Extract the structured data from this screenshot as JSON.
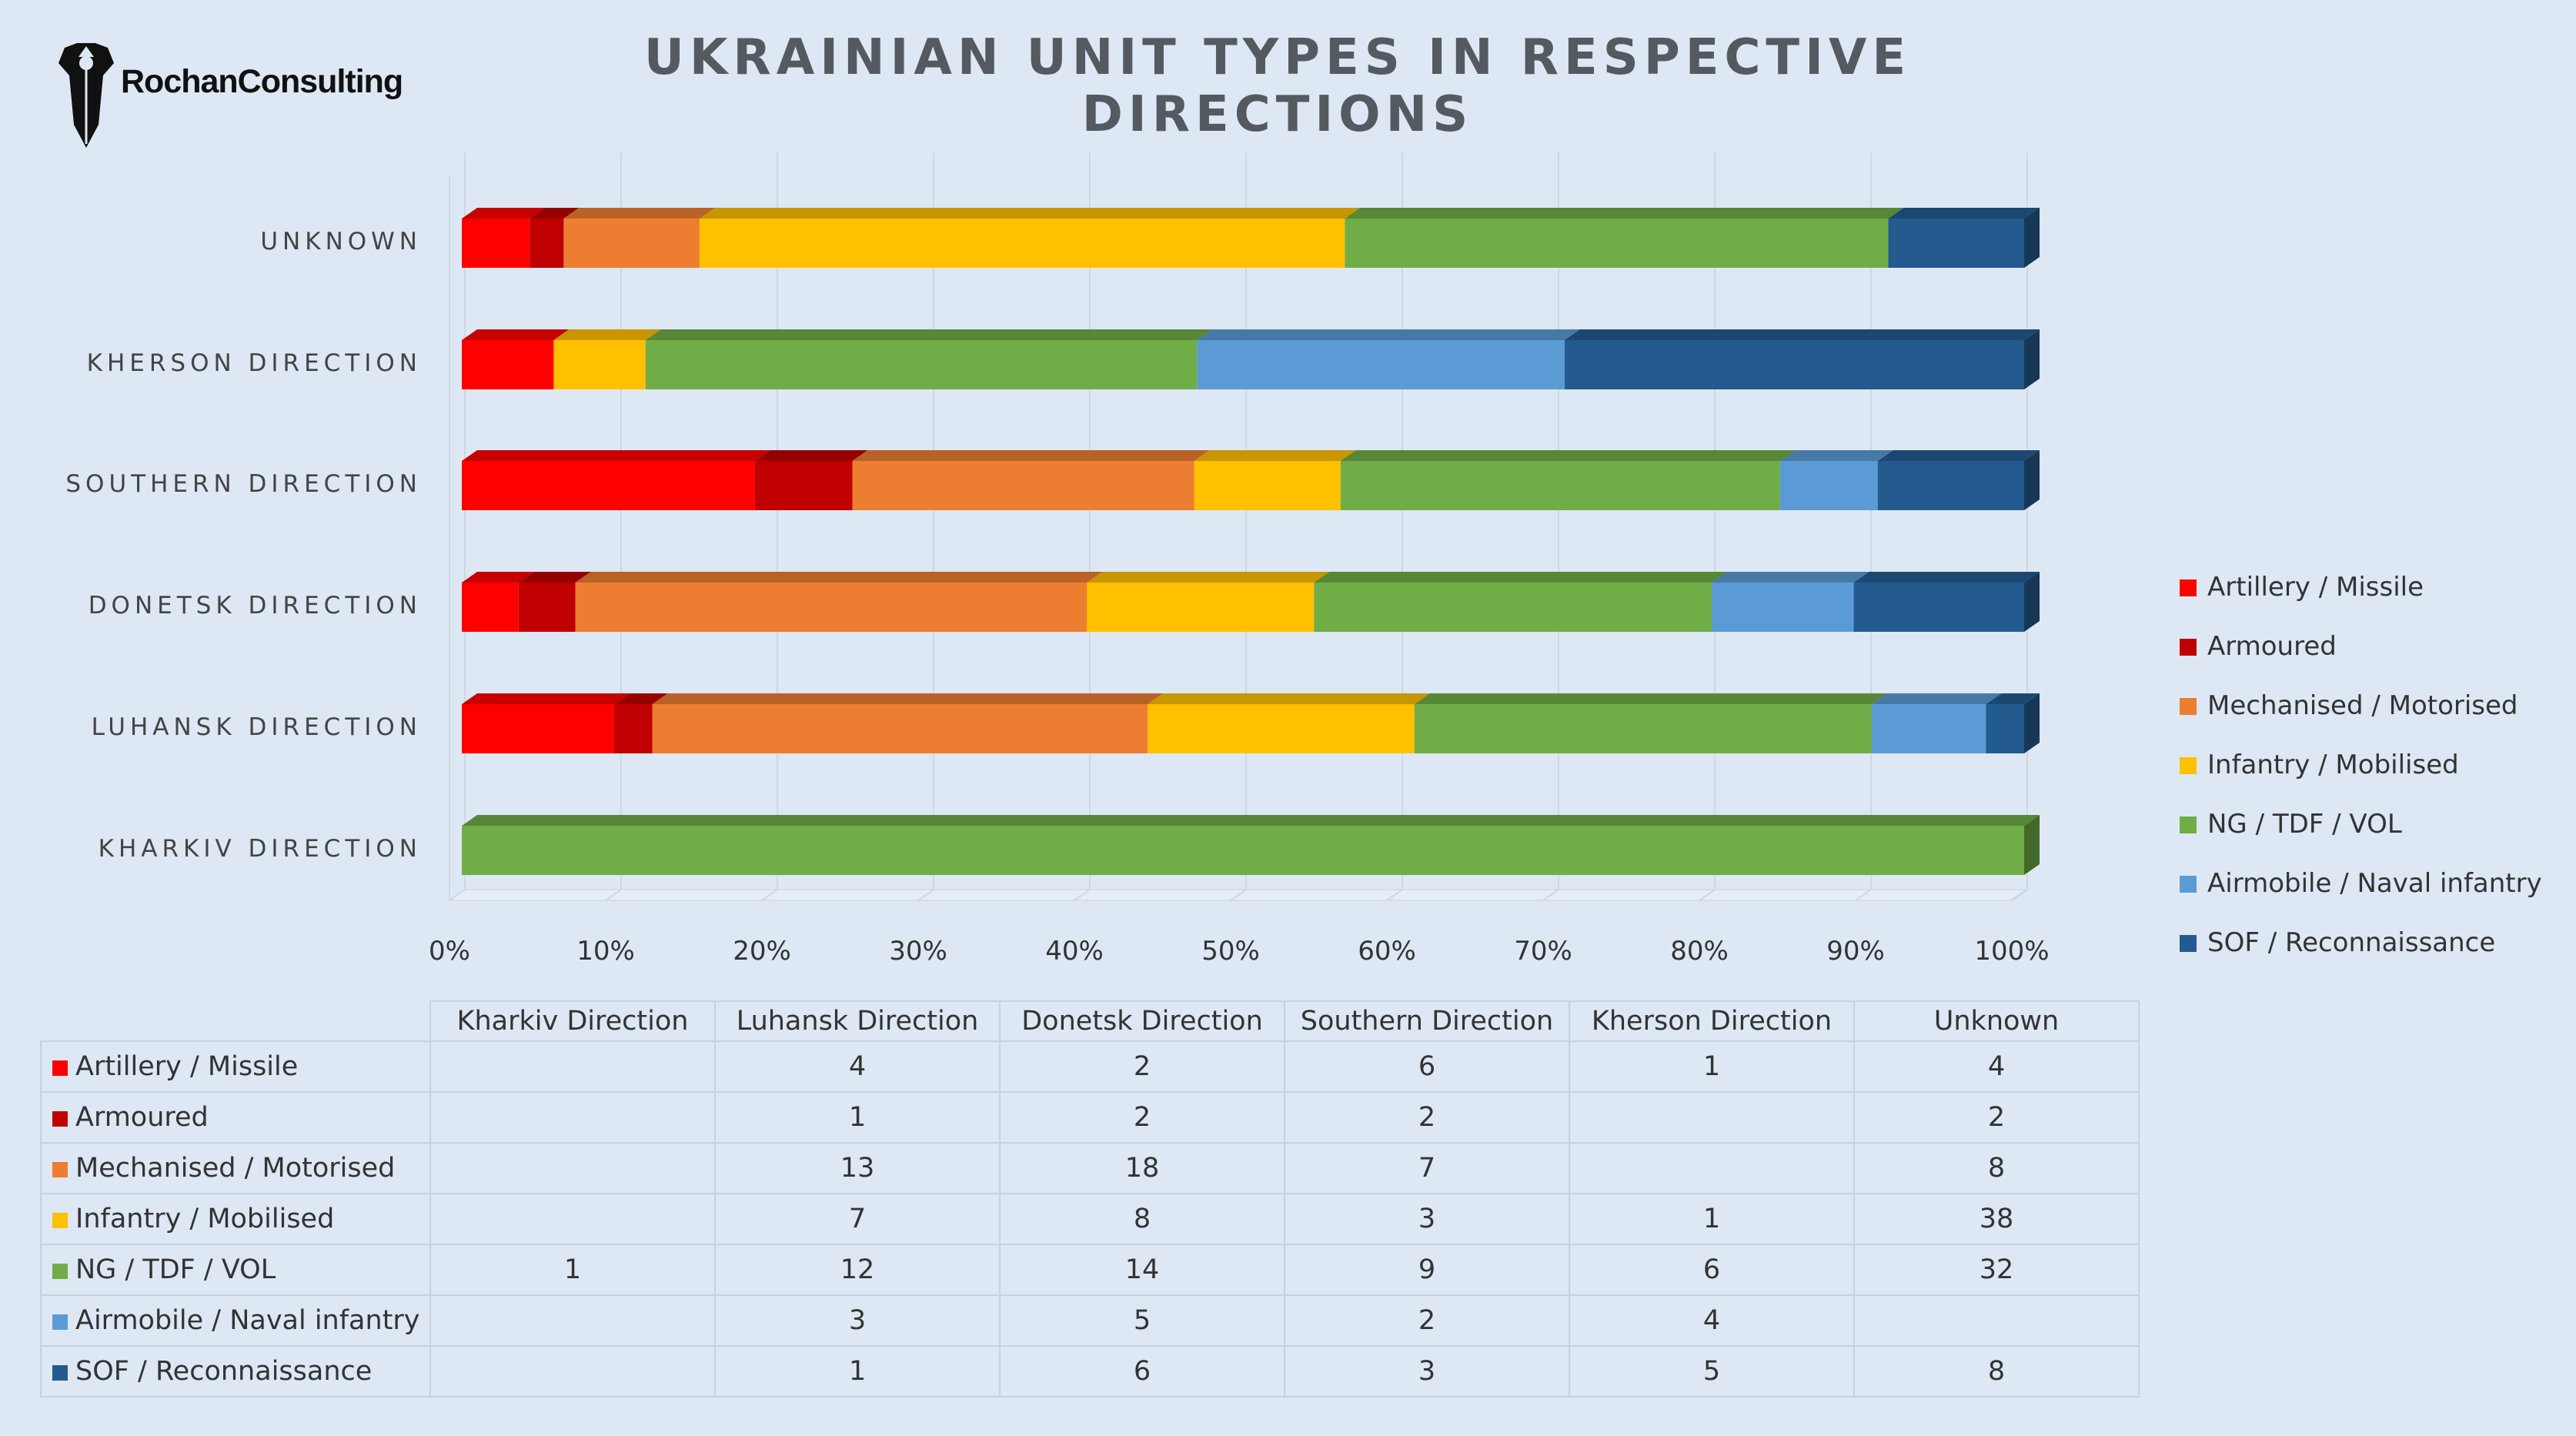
{
  "logo": {
    "text": "RochanConsulting"
  },
  "title": "UKRAINIAN UNIT TYPES IN RESPECTIVE DIRECTIONS",
  "chart_data": {
    "type": "bar",
    "orientation": "horizontal",
    "stacked": "percent",
    "categories": [
      "Kharkiv Direction",
      "Luhansk Direction",
      "Donetsk Direction",
      "Southern Direction",
      "Kherson Direction",
      "Unknown"
    ],
    "axis_category_labels": [
      "KHARKIV DIRECTION",
      "LUHANSK DIRECTION",
      "DONETSK DIRECTION",
      "SOUTHERN DIRECTION",
      "KHERSON DIRECTION",
      "UNKNOWN"
    ],
    "series": [
      {
        "name": "Artillery / Missile",
        "color": "#ff0000",
        "values": [
          null,
          4,
          2,
          6,
          1,
          4
        ]
      },
      {
        "name": "Armoured",
        "color": "#c00000",
        "values": [
          null,
          1,
          2,
          2,
          null,
          2
        ]
      },
      {
        "name": "Mechanised / Motorised",
        "color": "#ed7d31",
        "values": [
          null,
          13,
          18,
          7,
          null,
          8
        ]
      },
      {
        "name": "Infantry / Mobilised",
        "color": "#ffc000",
        "values": [
          null,
          7,
          8,
          3,
          1,
          38
        ]
      },
      {
        "name": "NG / TDF / VOL",
        "color": "#70ad47",
        "values": [
          1,
          12,
          14,
          9,
          6,
          32
        ]
      },
      {
        "name": "Airmobile / Naval infantry",
        "color": "#5b9bd5",
        "values": [
          null,
          3,
          5,
          2,
          4,
          null
        ]
      },
      {
        "name": "SOF / Reconnaissance",
        "color": "#245b8f",
        "values": [
          null,
          1,
          6,
          3,
          5,
          8
        ]
      }
    ],
    "x_ticks": [
      "0%",
      "10%",
      "20%",
      "30%",
      "40%",
      "50%",
      "60%",
      "70%",
      "80%",
      "90%",
      "100%"
    ],
    "xlim": [
      0,
      100
    ],
    "grid": true,
    "legend": "right",
    "data_table": true
  }
}
